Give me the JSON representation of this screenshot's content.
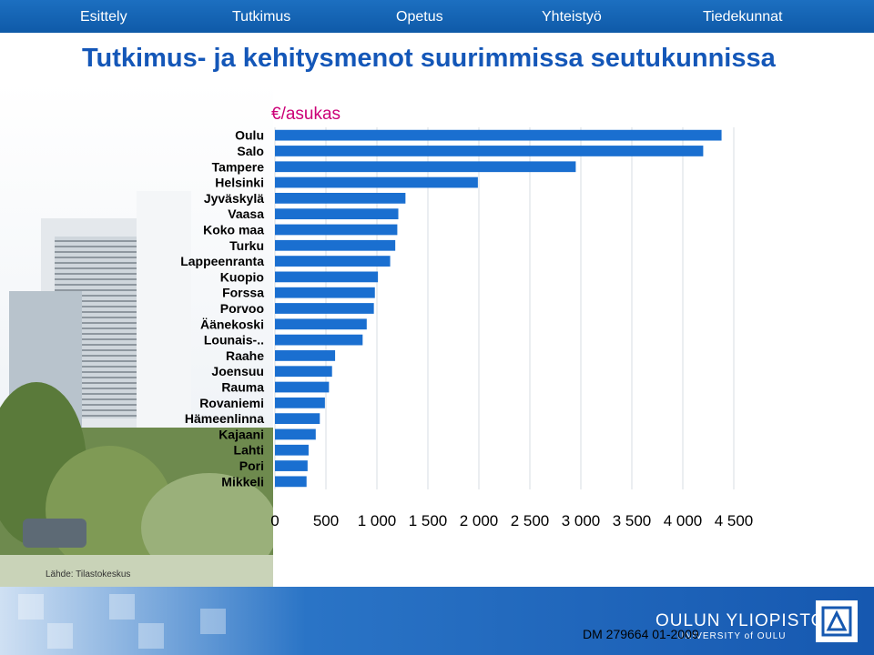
{
  "nav": {
    "items": [
      "Esittely",
      "Tutkimus",
      "Opetus",
      "Yhteistyö",
      "Tiedekunnat"
    ]
  },
  "page_title": "Tutkimus- ja kehitysmenot suurimmissa seutukunnissa",
  "source": "Lähde: Tilastokeskus",
  "footer": {
    "logo_text": "OULUN YLIOPISTO",
    "logo_subtext": "UNIVERSITY of OULU",
    "doc_id": "DM 279664  01-2009"
  },
  "colors": {
    "bar": "#1a6fd0",
    "title": "#1457b8",
    "unit": "#cc0077",
    "nav": "#1565c0"
  },
  "chart_data": {
    "type": "bar",
    "orientation": "horizontal",
    "title": "",
    "unit_label": "€/asukas",
    "xlim": [
      0,
      4500
    ],
    "xticks": [
      "0",
      "500",
      "1 000",
      "1 500",
      "2 000",
      "2 500",
      "3 000",
      "3 500",
      "4 000",
      "4 500"
    ],
    "grid": true,
    "categories": [
      "Oulu",
      "Salo",
      "Tampere",
      "Helsinki",
      "Jyväskylä",
      "Vaasa",
      "Koko maa",
      "Turku",
      "Lappeenranta",
      "Kuopio",
      "Forssa",
      "Porvoo",
      "Äänekoski",
      "Lounais-..",
      "Raahe",
      "Joensuu",
      "Rauma",
      "Rovaniemi",
      "Hämeenlinna",
      "Kajaani",
      "Lahti",
      "Pori",
      "Mikkeli"
    ],
    "values": [
      4380,
      4200,
      2950,
      1990,
      1280,
      1210,
      1200,
      1180,
      1130,
      1010,
      980,
      970,
      900,
      860,
      590,
      560,
      530,
      490,
      440,
      400,
      330,
      320,
      310
    ]
  }
}
